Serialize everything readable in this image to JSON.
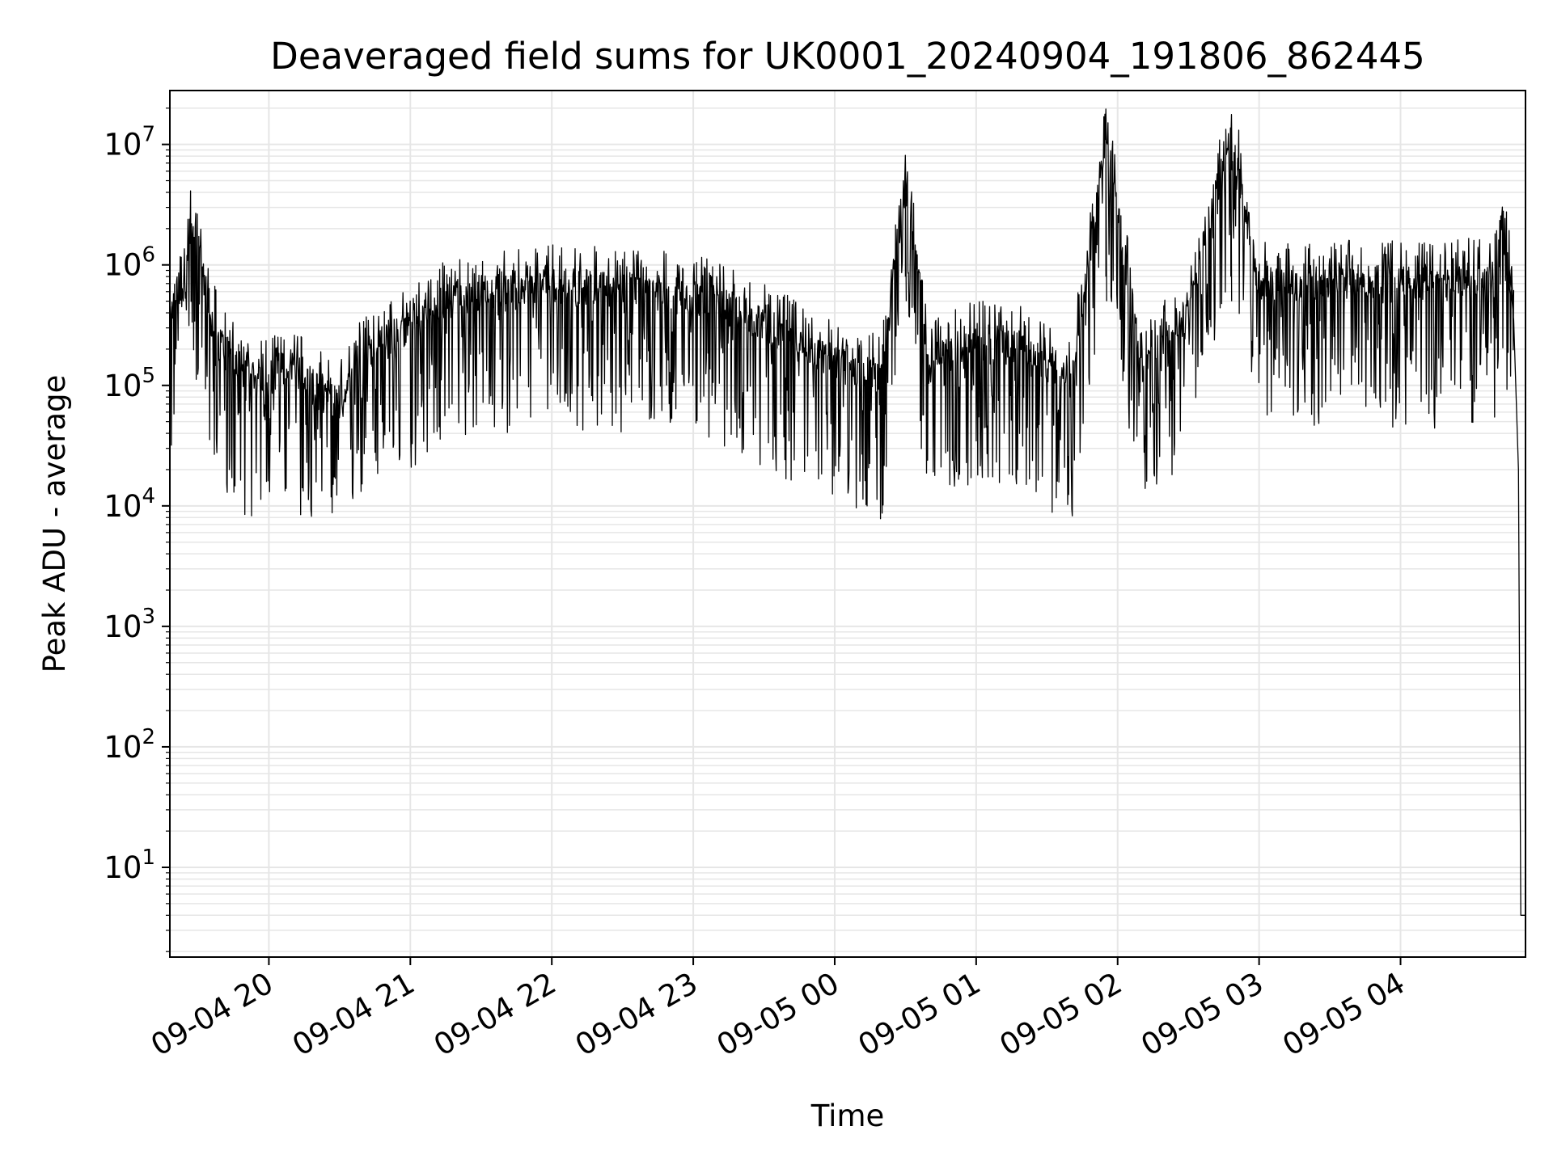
{
  "chart_data": {
    "type": "line",
    "title": "Deaveraged field sums for UK0001_20240904_191806_862445",
    "xlabel": "Time",
    "ylabel": "Peak ADU - average",
    "yscale": "log",
    "grid": true,
    "xlim": [
      "2024-09-04 19:18",
      "2024-09-05 04:53"
    ],
    "ylim": [
      1.8,
      28000000
    ],
    "x_ticks": [
      {
        "label": "09-04 20",
        "time": "2024-09-04 20:00"
      },
      {
        "label": "09-04 21",
        "time": "2024-09-04 21:00"
      },
      {
        "label": "09-04 22",
        "time": "2024-09-04 22:00"
      },
      {
        "label": "09-04 23",
        "time": "2024-09-04 23:00"
      },
      {
        "label": "09-05 00",
        "time": "2024-09-05 00:00"
      },
      {
        "label": "09-05 01",
        "time": "2024-09-05 01:00"
      },
      {
        "label": "09-05 02",
        "time": "2024-09-05 02:00"
      },
      {
        "label": "09-05 03",
        "time": "2024-09-05 03:00"
      },
      {
        "label": "09-05 04",
        "time": "2024-09-05 04:00"
      }
    ],
    "y_ticks": [
      {
        "base": "10",
        "exp": "1",
        "value": 10
      },
      {
        "base": "10",
        "exp": "2",
        "value": 100
      },
      {
        "base": "10",
        "exp": "3",
        "value": 1000
      },
      {
        "base": "10",
        "exp": "4",
        "value": 10000
      },
      {
        "base": "10",
        "exp": "5",
        "value": 100000
      },
      {
        "base": "10",
        "exp": "6",
        "value": 1000000
      },
      {
        "base": "10",
        "exp": "7",
        "value": 10000000
      }
    ],
    "line_color": "#000000",
    "grid_color": "#e6e6e6",
    "series": [
      {
        "points": [
          [
            "2024-09-04 19:18",
            300000
          ],
          [
            "2024-09-04 19:20",
            550000
          ],
          [
            "2024-09-04 19:24",
            600000
          ],
          [
            "2024-09-04 19:27",
            2100000
          ],
          [
            "2024-09-04 19:30",
            1300000
          ],
          [
            "2024-09-04 19:35",
            400000
          ],
          [
            "2024-09-04 19:40",
            200000
          ],
          [
            "2024-09-04 19:50",
            130000
          ],
          [
            "2024-09-04 20:00",
            110000
          ],
          [
            "2024-09-04 20:10",
            150000
          ],
          [
            "2024-09-04 20:20",
            90000
          ],
          [
            "2024-09-04 20:30",
            70000
          ],
          [
            "2024-09-04 20:40",
            180000
          ],
          [
            "2024-09-04 20:50",
            250000
          ],
          [
            "2024-09-04 21:00",
            300000
          ],
          [
            "2024-09-04 21:15",
            500000
          ],
          [
            "2024-09-04 21:30",
            600000
          ],
          [
            "2024-09-04 21:45",
            650000
          ],
          [
            "2024-09-04 22:00",
            700000
          ],
          [
            "2024-09-04 22:20",
            650000
          ],
          [
            "2024-09-04 22:40",
            600000
          ],
          [
            "2024-09-04 23:00",
            550000
          ],
          [
            "2024-09-04 23:20",
            400000
          ],
          [
            "2024-09-04 23:40",
            250000
          ],
          [
            "2024-09-05 00:00",
            150000
          ],
          [
            "2024-09-05 00:20",
            120000
          ],
          [
            "2024-09-05 00:30",
            5000000
          ],
          [
            "2024-09-05 00:40",
            150000
          ],
          [
            "2024-09-05 01:00",
            250000
          ],
          [
            "2024-09-05 01:20",
            200000
          ],
          [
            "2024-09-05 01:40",
            100000
          ],
          [
            "2024-09-05 01:55",
            11000000
          ],
          [
            "2024-09-05 02:10",
            150000
          ],
          [
            "2024-09-05 02:30",
            400000
          ],
          [
            "2024-09-05 02:48",
            13500000
          ],
          [
            "2024-09-05 03:00",
            700000
          ],
          [
            "2024-09-05 03:20",
            700000
          ],
          [
            "2024-09-05 03:40",
            750000
          ],
          [
            "2024-09-05 04:00",
            700000
          ],
          [
            "2024-09-05 04:20",
            700000
          ],
          [
            "2024-09-05 04:40",
            800000
          ],
          [
            "2024-09-05 04:43",
            2300000
          ],
          [
            "2024-09-05 04:46",
            1000000
          ],
          [
            "2024-09-05 04:48",
            350000
          ],
          [
            "2024-09-05 04:50",
            20000
          ],
          [
            "2024-09-05 04:51",
            4
          ],
          [
            "2024-09-05 04:53",
            4
          ]
        ]
      }
    ]
  }
}
